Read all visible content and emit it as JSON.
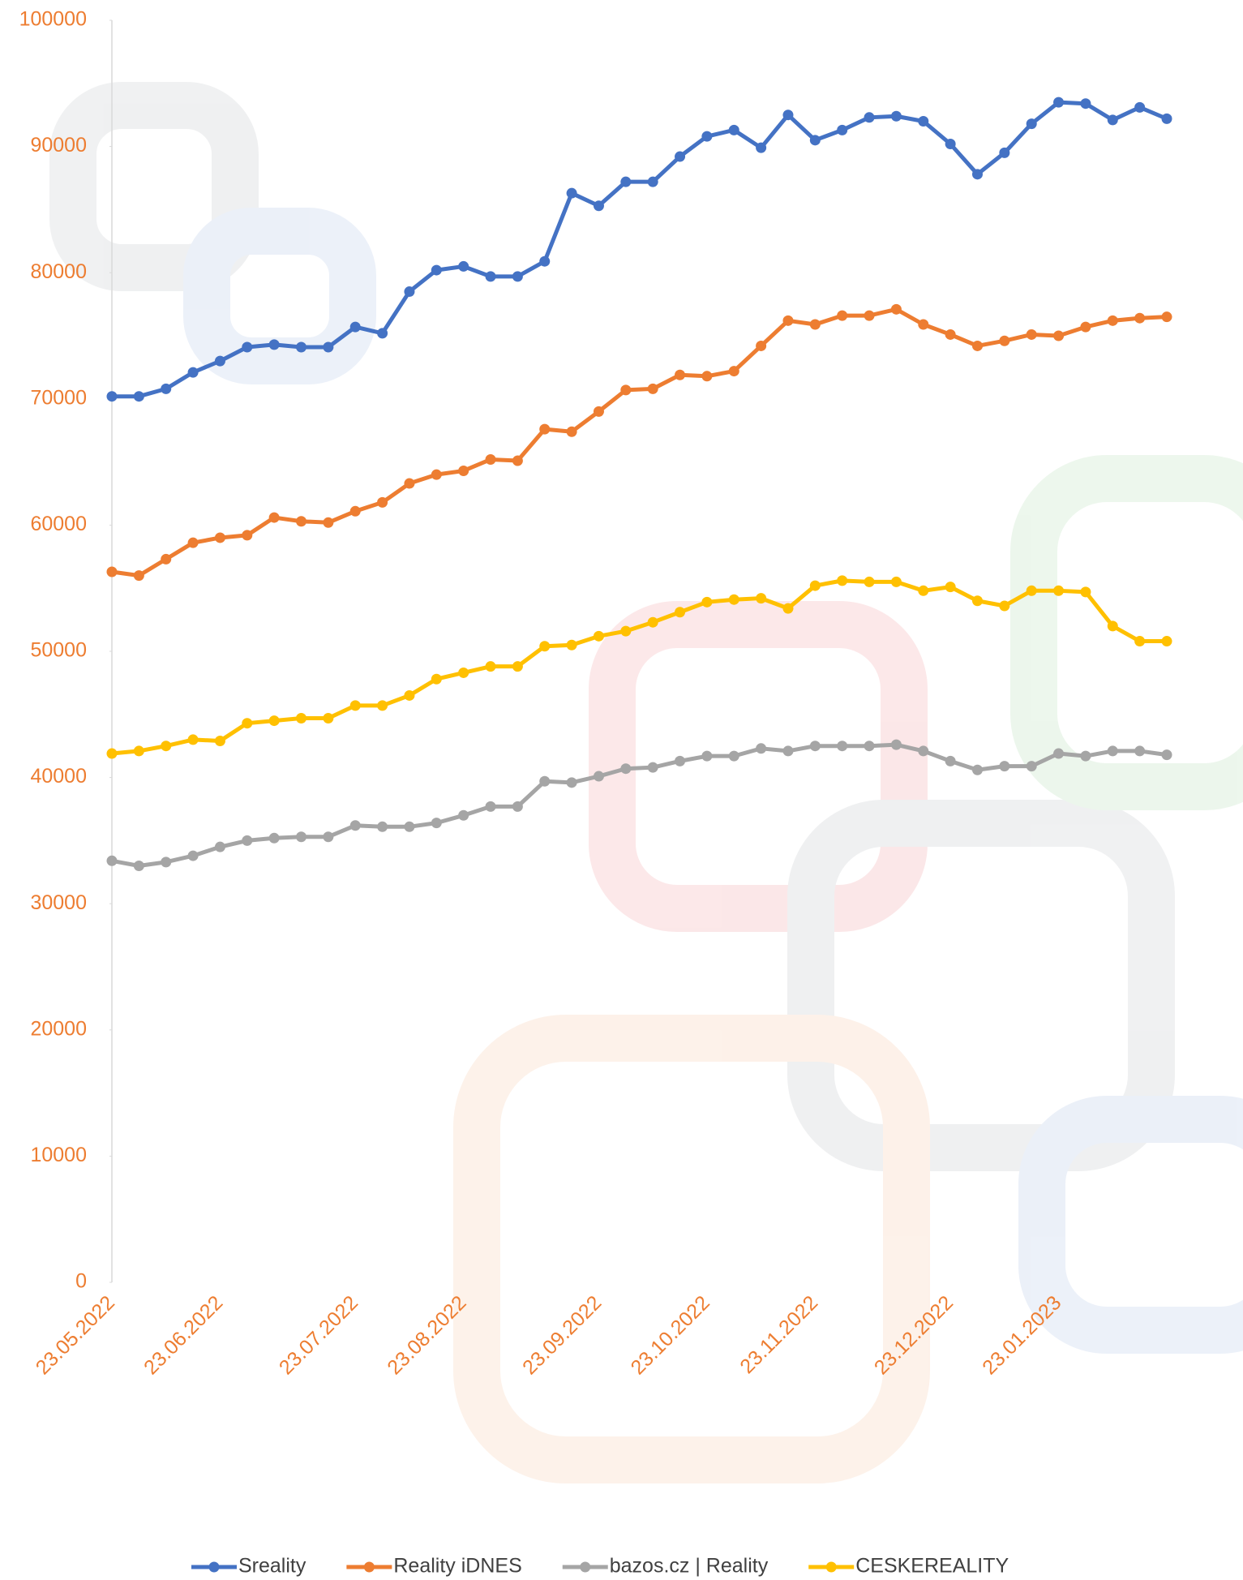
{
  "chart_data": {
    "type": "line",
    "categories": [
      "23.05.2022",
      null,
      null,
      null,
      "23.06.2022",
      null,
      null,
      null,
      null,
      "23.07.2022",
      null,
      null,
      null,
      "23.08.2022",
      null,
      null,
      null,
      null,
      "23.09.2022",
      null,
      null,
      null,
      "23.10.2022",
      null,
      null,
      null,
      "23.11.2022",
      null,
      null,
      null,
      null,
      "23.12.2022",
      null,
      null,
      null,
      "23.01.2023",
      null,
      null,
      null,
      null
    ],
    "series": [
      {
        "name": "Sreality",
        "color": "#4472C4",
        "values": [
          70200,
          70200,
          70800,
          72100,
          73000,
          74100,
          74300,
          74100,
          74100,
          75700,
          75200,
          78500,
          80200,
          80500,
          79700,
          79700,
          80900,
          86300,
          85300,
          87200,
          87200,
          89200,
          90800,
          91300,
          89900,
          92500,
          90500,
          91300,
          92300,
          92400,
          92000,
          90200,
          87800,
          89500,
          91800,
          93500,
          93400,
          92100,
          93100,
          92200
        ]
      },
      {
        "name": "Reality iDNES",
        "color": "#ED7D31",
        "values": [
          56300,
          56000,
          57300,
          58600,
          59000,
          59200,
          60600,
          60300,
          60200,
          61100,
          61800,
          63300,
          64000,
          64300,
          65200,
          65100,
          67600,
          67400,
          69000,
          70700,
          70800,
          71900,
          71800,
          72200,
          74200,
          76200,
          75900,
          76600,
          76600,
          77100,
          75900,
          75100,
          74200,
          74600,
          75100,
          75000,
          75700,
          76200,
          76400,
          76500
        ]
      },
      {
        "name": "bazos.cz | Reality",
        "color": "#A5A5A5",
        "values": [
          33400,
          33000,
          33300,
          33800,
          34500,
          35000,
          35200,
          35300,
          35300,
          36200,
          36100,
          36100,
          36400,
          37000,
          37700,
          37700,
          39700,
          39600,
          40100,
          40700,
          40800,
          41300,
          41700,
          41700,
          42300,
          42100,
          42500,
          42500,
          42500,
          42600,
          42100,
          41300,
          40600,
          40900,
          40900,
          41900,
          41700,
          42100,
          42100,
          41800
        ]
      },
      {
        "name": "CESKEREALITY",
        "color": "#FFC000",
        "values": [
          41900,
          42100,
          42500,
          43000,
          42900,
          44300,
          44500,
          44700,
          44700,
          45700,
          45700,
          46500,
          47800,
          48300,
          48800,
          48800,
          50400,
          50500,
          51200,
          51600,
          52300,
          53100,
          53900,
          54100,
          54200,
          53400,
          55200,
          55600,
          55500,
          55500,
          54800,
          55100,
          54000,
          53600,
          54800,
          54800,
          54700,
          52000,
          50800,
          50800
        ]
      }
    ],
    "ylim": [
      0,
      100000
    ],
    "yticks": [
      0,
      10000,
      20000,
      30000,
      40000,
      50000,
      60000,
      70000,
      80000,
      90000,
      100000
    ],
    "legend": "bottom"
  }
}
